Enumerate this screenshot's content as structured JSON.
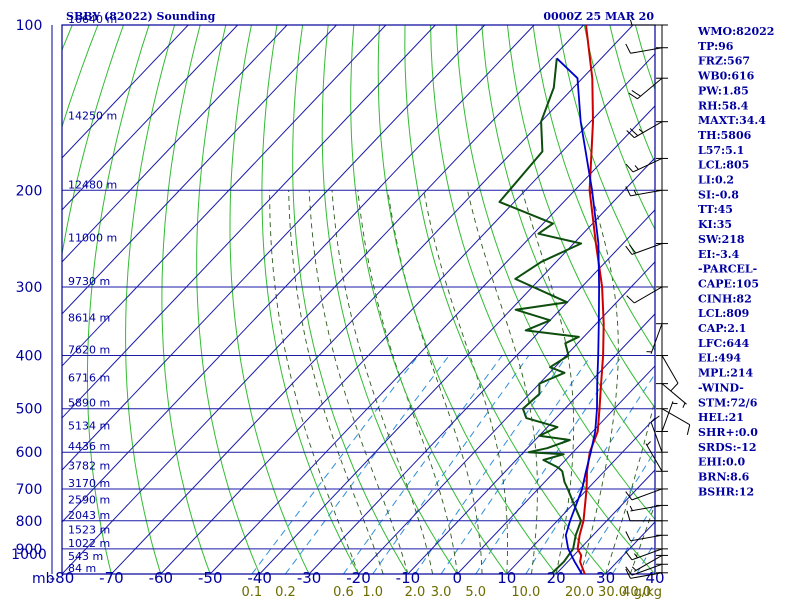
{
  "header": {
    "station_title": "SBBY (82022) Sounding",
    "time_title": "0000Z 25 MAR 20"
  },
  "colors": {
    "frame": "#00009a",
    "isobar": "#1a1aa8",
    "isotherm": "#1a1aa8",
    "dry_adiabat": "#33bb33",
    "moist_adiabat": "#2c5a1e",
    "mixing_ratio": "#2f8fd8",
    "temperature": "#cc0000",
    "dewpoint": "#0d4d0d",
    "parcel": "#0000cc",
    "wind_barb": "#000000",
    "text": "#0000a0",
    "mixing_label": "#6b6b00"
  },
  "side_indices": [
    "WMO:82022",
    "TP:96",
    "FRZ:567",
    "WB0:616",
    "PW:1.85",
    "RH:58.4",
    "MAXT:34.4",
    "TH:5806",
    "L57:5.1",
    "LCL:805",
    "LI:0.2",
    "SI:-0.8",
    "TT:45",
    "KI:35",
    "SW:218",
    "EI:-3.4",
    "-PARCEL-",
    "CAPE:105",
    "CINH:82",
    "LCL:809",
    "CAP:2.1",
    "LFC:644",
    "EL:494",
    "MPL:214",
    "-WIND-",
    "STM:72/6",
    "HEL:21",
    "SHR+:0.0",
    "SRDS:-12",
    "EHI:0.0",
    "BRN:8.6",
    "BSHR:12"
  ],
  "chart_data": {
    "type": "line",
    "subtype": "skew-T log-P sounding diagram",
    "xlabel": "",
    "ylabel": "",
    "y_unit": "mb",
    "mixing_ratio_unit": "g/kg",
    "pressure_range": [
      1000,
      100
    ],
    "temperature_range": [
      -80,
      40
    ],
    "y_scale": "log",
    "pressure_ticks": [
      100,
      200,
      300,
      400,
      500,
      600,
      700,
      800,
      900,
      1000
    ],
    "temperature_ticks": [
      -80,
      -70,
      -60,
      -50,
      -40,
      -30,
      -20,
      -10,
      0,
      10,
      20,
      30,
      40
    ],
    "temperature_tick_labels": [
      "-80",
      "-70",
      "-60",
      "-50",
      "-40",
      "-30",
      "-20",
      "-10",
      "0",
      "10",
      "20",
      "30",
      "40"
    ],
    "height_labels": [
      {
        "p": 100,
        "label": "16640 m"
      },
      {
        "p": 150,
        "label": "14250 m"
      },
      {
        "p": 200,
        "label": "12480 m"
      },
      {
        "p": 250,
        "label": "11000 m"
      },
      {
        "p": 300,
        "label": "9730 m"
      },
      {
        "p": 350,
        "label": "8614 m"
      },
      {
        "p": 400,
        "label": "7620 m"
      },
      {
        "p": 450,
        "label": "6716 m"
      },
      {
        "p": 500,
        "label": "5890 m"
      },
      {
        "p": 550,
        "label": "5134 m"
      },
      {
        "p": 600,
        "label": "4436 m"
      },
      {
        "p": 650,
        "label": "3782 m"
      },
      {
        "p": 700,
        "label": "3170 m"
      },
      {
        "p": 750,
        "label": "2590 m"
      },
      {
        "p": 800,
        "label": "2043 m"
      },
      {
        "p": 850,
        "label": "1523 m"
      },
      {
        "p": 900,
        "label": "1022 m"
      },
      {
        "p": 950,
        "label": "543 m"
      },
      {
        "p": 1000,
        "label": "84 m"
      }
    ],
    "mixing_ratio_lines": [
      0.1,
      0.2,
      0.6,
      1.0,
      2.0,
      3.0,
      5.0,
      10.0,
      20.0,
      30.0,
      40.0
    ],
    "mixing_ratio_labels": [
      "0.1",
      "0.2",
      "0.6",
      "1.0",
      "2.0",
      "3.0",
      "5.0",
      "10.0",
      "20.0",
      "30.0",
      "40.0"
    ],
    "mixing_ratio_unit_label": "g/kg",
    "series": [
      {
        "key": "temperature",
        "points": [
          [
            1000,
            25.8
          ],
          [
            950,
            22.5
          ],
          [
            925,
            21.5
          ],
          [
            900,
            19.5
          ],
          [
            850,
            17.3
          ],
          [
            800,
            15.3
          ],
          [
            700,
            9.8
          ],
          [
            650,
            6.5
          ],
          [
            600,
            3.4
          ],
          [
            550,
            1.0
          ],
          [
            500,
            -3.0
          ],
          [
            450,
            -7.5
          ],
          [
            400,
            -12.5
          ],
          [
            350,
            -18.5
          ],
          [
            300,
            -25.9
          ],
          [
            250,
            -35.5
          ],
          [
            200,
            -47.0
          ],
          [
            150,
            -59.5
          ],
          [
            125,
            -68.0
          ],
          [
            100,
            -79.5
          ]
        ]
      },
      {
        "key": "dewpoint",
        "points": [
          [
            1000,
            19.0
          ],
          [
            950,
            19.2
          ],
          [
            900,
            18.6
          ],
          [
            850,
            16.5
          ],
          [
            800,
            14.8
          ],
          [
            750,
            10.5
          ],
          [
            700,
            6.0
          ],
          [
            680,
            4.0
          ],
          [
            650,
            1.5
          ],
          [
            640,
            0.0
          ],
          [
            620,
            -4.5
          ],
          [
            605,
            -1.5
          ],
          [
            600,
            -9.0
          ],
          [
            590,
            -6.0
          ],
          [
            570,
            -3.0
          ],
          [
            560,
            -10.0
          ],
          [
            540,
            -8.0
          ],
          [
            520,
            -16.0
          ],
          [
            500,
            -18.5
          ],
          [
            470,
            -18.0
          ],
          [
            450,
            -20.0
          ],
          [
            430,
            -17.0
          ],
          [
            420,
            -21.0
          ],
          [
            400,
            -19.5
          ],
          [
            380,
            -22.5
          ],
          [
            370,
            -21.0
          ],
          [
            360,
            -33.0
          ],
          [
            345,
            -30.0
          ],
          [
            330,
            -39.0
          ],
          [
            320,
            -30.0
          ],
          [
            290,
            -45.0
          ],
          [
            270,
            -43.0
          ],
          [
            250,
            -38.5
          ],
          [
            240,
            -49.0
          ],
          [
            230,
            -48.0
          ],
          [
            210,
            -63.0
          ],
          [
            170,
            -64.0
          ],
          [
            150,
            -70.0
          ],
          [
            130,
            -74.0
          ],
          [
            115,
            -79.0
          ]
        ]
      },
      {
        "key": "parcel",
        "points": [
          [
            1000,
            25.2
          ],
          [
            950,
            21.4
          ],
          [
            900,
            17.6
          ],
          [
            850,
            14.5
          ],
          [
            800,
            12.6
          ],
          [
            750,
            10.8
          ],
          [
            700,
            8.9
          ],
          [
            650,
            6.3
          ],
          [
            600,
            3.6
          ],
          [
            550,
            0.5
          ],
          [
            500,
            -3.5
          ],
          [
            450,
            -8.3
          ],
          [
            400,
            -13.5
          ],
          [
            350,
            -19.5
          ],
          [
            300,
            -26.5
          ],
          [
            250,
            -35.0
          ],
          [
            200,
            -46.5
          ],
          [
            150,
            -62.0
          ],
          [
            125,
            -71.0
          ],
          [
            115,
            -79.0
          ]
        ]
      }
    ],
    "wind_barbs": [
      {
        "p": 995,
        "dir": 260,
        "kt": 10
      },
      {
        "p": 960,
        "dir": 250,
        "kt": 10
      },
      {
        "p": 925,
        "dir": 240,
        "kt": 5
      },
      {
        "p": 900,
        "dir": 250,
        "kt": 15
      },
      {
        "p": 850,
        "dir": 260,
        "kt": 10
      },
      {
        "p": 800,
        "dir": 270,
        "kt": 10
      },
      {
        "p": 750,
        "dir": 260,
        "kt": 5
      },
      {
        "p": 700,
        "dir": 250,
        "kt": 10
      },
      {
        "p": 650,
        "dir": 330,
        "kt": 5
      },
      {
        "p": 600,
        "dir": 340,
        "kt": 10
      },
      {
        "p": 550,
        "dir": 20,
        "kt": 5
      },
      {
        "p": 500,
        "dir": 120,
        "kt": 10
      },
      {
        "p": 450,
        "dir": 130,
        "kt": 5
      },
      {
        "p": 400,
        "dir": 150,
        "kt": 10
      },
      {
        "p": 350,
        "dir": 200,
        "kt": 5
      },
      {
        "p": 300,
        "dir": 240,
        "kt": 10
      },
      {
        "p": 250,
        "dir": 250,
        "kt": 20
      },
      {
        "p": 200,
        "dir": 260,
        "kt": 15
      },
      {
        "p": 175,
        "dir": 245,
        "kt": 15
      },
      {
        "p": 150,
        "dir": 240,
        "kt": 25
      },
      {
        "p": 125,
        "dir": 230,
        "kt": 20
      },
      {
        "p": 110,
        "dir": 260,
        "kt": 10
      },
      {
        "p": 100,
        "dir": 270,
        "kt": 5
      }
    ]
  }
}
